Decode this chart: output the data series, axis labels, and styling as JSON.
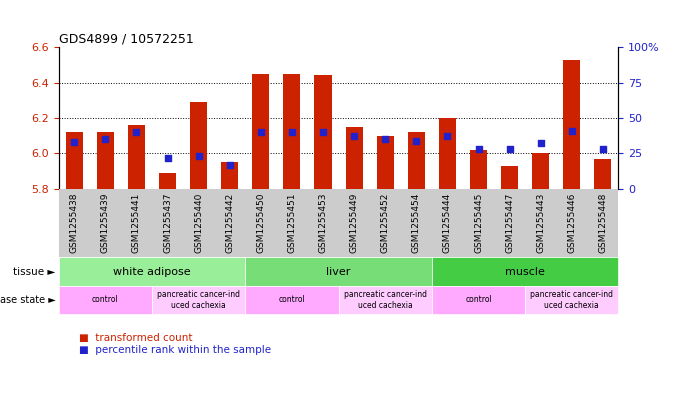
{
  "title": "GDS4899 / 10572251",
  "samples": [
    "GSM1255438",
    "GSM1255439",
    "GSM1255441",
    "GSM1255437",
    "GSM1255440",
    "GSM1255442",
    "GSM1255450",
    "GSM1255451",
    "GSM1255453",
    "GSM1255449",
    "GSM1255452",
    "GSM1255454",
    "GSM1255444",
    "GSM1255445",
    "GSM1255447",
    "GSM1255443",
    "GSM1255446",
    "GSM1255448"
  ],
  "transformed_count": [
    6.12,
    6.12,
    6.16,
    5.89,
    6.29,
    5.95,
    6.45,
    6.45,
    6.44,
    6.15,
    6.1,
    6.12,
    6.2,
    6.02,
    5.93,
    6.0,
    6.53,
    5.97
  ],
  "percentile_rank": [
    33,
    35,
    40,
    22,
    23,
    17,
    40,
    40,
    40,
    37,
    35,
    34,
    37,
    28,
    28,
    32,
    41,
    28
  ],
  "ymin": 5.8,
  "ymax": 6.6,
  "y2min": 0,
  "y2max": 100,
  "yticks": [
    5.8,
    6.0,
    6.2,
    6.4,
    6.6
  ],
  "y2ticks": [
    0,
    25,
    50,
    75,
    100
  ],
  "bar_color": "#cc2200",
  "dot_color": "#2222cc",
  "tissues": [
    {
      "label": "white adipose",
      "start": 0,
      "end": 6,
      "color": "#99ee99"
    },
    {
      "label": "liver",
      "start": 6,
      "end": 12,
      "color": "#77dd77"
    },
    {
      "label": "muscle",
      "start": 12,
      "end": 18,
      "color": "#44cc44"
    }
  ],
  "disease_states": [
    {
      "label": "control",
      "start": 0,
      "end": 3,
      "color": "#ffaaff"
    },
    {
      "label": "pancreatic cancer-ind\nuced cachexia",
      "start": 3,
      "end": 6,
      "color": "#ffccff"
    },
    {
      "label": "control",
      "start": 6,
      "end": 9,
      "color": "#ffaaff"
    },
    {
      "label": "pancreatic cancer-ind\nuced cachexia",
      "start": 9,
      "end": 12,
      "color": "#ffccff"
    },
    {
      "label": "control",
      "start": 12,
      "end": 15,
      "color": "#ffaaff"
    },
    {
      "label": "pancreatic cancer-ind\nuced cachexia",
      "start": 15,
      "end": 18,
      "color": "#ffccff"
    }
  ],
  "legend_items": [
    {
      "label": "transformed count",
      "color": "#cc2200"
    },
    {
      "label": "percentile rank within the sample",
      "color": "#2222cc"
    }
  ],
  "tissue_row_label": "tissue",
  "disease_row_label": "disease state",
  "grid_color": "black",
  "left_tick_color": "#cc2200",
  "right_tick_color": "#2222cc",
  "sample_label_bg": "#cccccc"
}
